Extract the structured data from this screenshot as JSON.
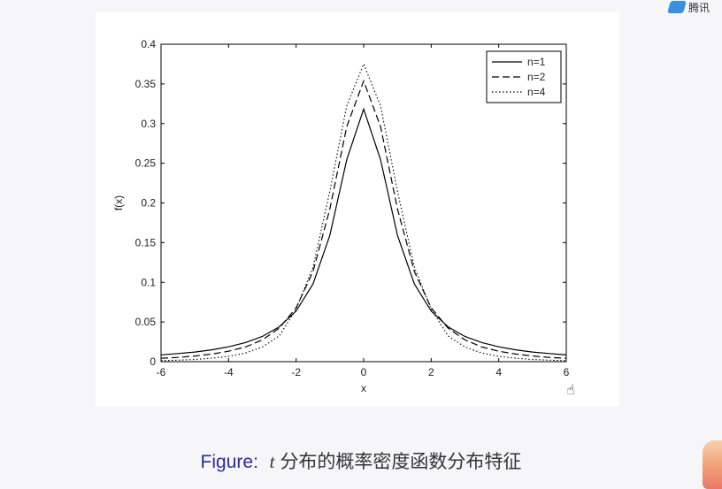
{
  "corner_logo": {
    "icon": "app-logo-icon",
    "text": "腾讯"
  },
  "caption": {
    "label": "Figure:",
    "variable": "t",
    "text": "分布的概率密度函数分布特征"
  },
  "chart_data": {
    "type": "line",
    "title": "",
    "xlabel": "x",
    "ylabel": "f(x)",
    "xlim": [
      -6,
      6
    ],
    "ylim": [
      0,
      0.4
    ],
    "xticks": [
      "-6",
      "-4",
      "-2",
      "0",
      "2",
      "4",
      "6"
    ],
    "yticks": [
      "0",
      "0.05",
      "0.1",
      "0.15",
      "0.2",
      "0.25",
      "0.3",
      "0.35",
      "0.4"
    ],
    "grid": false,
    "legend_position": "top-right",
    "x": [
      -6,
      -5.5,
      -5,
      -4.5,
      -4,
      -3.5,
      -3,
      -2.5,
      -2,
      -1.5,
      -1,
      -0.5,
      0,
      0.5,
      1,
      1.5,
      2,
      2.5,
      3,
      3.5,
      4,
      4.5,
      5,
      5.5,
      6
    ],
    "series": [
      {
        "name": "n=1",
        "style": "solid",
        "color": "#000000",
        "values": [
          0.0086,
          0.0102,
          0.0122,
          0.0149,
          0.0187,
          0.0241,
          0.0318,
          0.0439,
          0.0637,
          0.0979,
          0.1592,
          0.2546,
          0.3183,
          0.2546,
          0.1592,
          0.0979,
          0.0637,
          0.0439,
          0.0318,
          0.0241,
          0.0187,
          0.0149,
          0.0122,
          0.0102,
          0.0086
        ]
      },
      {
        "name": "n=2",
        "style": "dashed",
        "color": "#000000",
        "values": [
          0.0042,
          0.0054,
          0.0071,
          0.0096,
          0.0131,
          0.0185,
          0.0274,
          0.0422,
          0.068,
          0.1136,
          0.1925,
          0.2962,
          0.3536,
          0.2962,
          0.1925,
          0.1136,
          0.068,
          0.0422,
          0.0274,
          0.0185,
          0.0131,
          0.0096,
          0.0071,
          0.0054,
          0.0042
        ]
      },
      {
        "name": "n=4",
        "style": "dotted",
        "color": "#000000",
        "values": [
          0.0013,
          0.0019,
          0.0028,
          0.0043,
          0.0067,
          0.0109,
          0.0185,
          0.0324,
          0.0663,
          0.1191,
          0.2147,
          0.3223,
          0.375,
          0.3223,
          0.2147,
          0.1191,
          0.0663,
          0.0324,
          0.0185,
          0.0109,
          0.0067,
          0.0043,
          0.0028,
          0.0019,
          0.0013
        ]
      }
    ]
  }
}
